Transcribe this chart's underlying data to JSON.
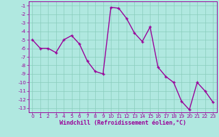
{
  "x": [
    0,
    1,
    2,
    3,
    4,
    5,
    6,
    7,
    8,
    9,
    10,
    11,
    12,
    13,
    14,
    15,
    16,
    17,
    18,
    19,
    20,
    21,
    22,
    23
  ],
  "y": [
    -5.0,
    -6.0,
    -6.0,
    -6.5,
    -5.0,
    -4.5,
    -5.5,
    -7.5,
    -8.7,
    -9.0,
    -1.2,
    -1.3,
    -2.5,
    -4.2,
    -5.2,
    -3.5,
    -8.2,
    -9.3,
    -10.0,
    -12.2,
    -13.2,
    -10.0,
    -11.0,
    -12.3
  ],
  "line_color": "#990099",
  "marker": "+",
  "bg_color": "#b0e8e0",
  "grid_color": "#88ccbb",
  "xlabel": "Windchill (Refroidissement éolien,°C)",
  "ylim": [
    -13.5,
    -0.5
  ],
  "xlim": [
    -0.5,
    23.5
  ],
  "yticks": [
    -13,
    -12,
    -11,
    -10,
    -9,
    -8,
    -7,
    -6,
    -5,
    -4,
    -3,
    -2,
    -1
  ],
  "xticks": [
    0,
    1,
    2,
    3,
    4,
    5,
    6,
    7,
    8,
    9,
    10,
    11,
    12,
    13,
    14,
    15,
    16,
    17,
    18,
    19,
    20,
    21,
    22,
    23
  ],
  "tick_fontsize": 5.2,
  "label_fontsize": 6.0,
  "line_width": 1.0,
  "marker_size": 3.5
}
